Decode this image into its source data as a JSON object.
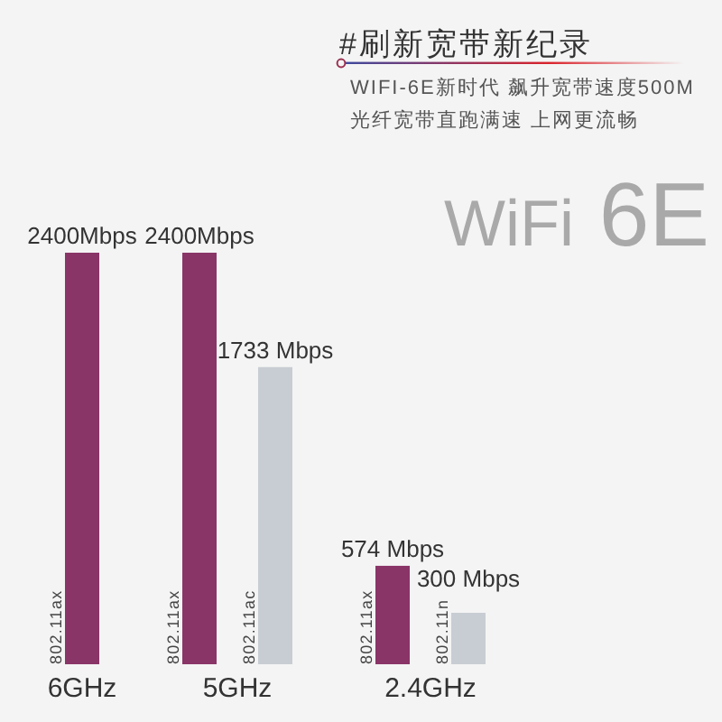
{
  "chart_data": {
    "type": "bar",
    "title": "#刷新宽带新纪录",
    "subtitle": "WIFI-6E新时代 飙升宽带速度500M",
    "annotations": [
      "光纤宽带直跑满速 上网更流畅",
      "WiFi 6E"
    ],
    "categories": [
      "6GHz",
      "5GHz",
      "2.4GHz"
    ],
    "series": [
      {
        "name": "802.11ax",
        "color": "#8a3568",
        "values": [
          2400,
          2400,
          574
        ],
        "value_labels": [
          "2400Mbps",
          "2400Mbps",
          "574 Mbps"
        ]
      },
      {
        "name": "802.11ac",
        "color": "#c8cdd4",
        "values": [
          null,
          1733,
          null
        ],
        "value_labels": [
          null,
          "1733 Mbps",
          null
        ]
      },
      {
        "name": "802.11n",
        "color": "#c8cdd4",
        "values": [
          null,
          null,
          300
        ],
        "value_labels": [
          null,
          null,
          "300 Mbps"
        ]
      }
    ]
  }
}
